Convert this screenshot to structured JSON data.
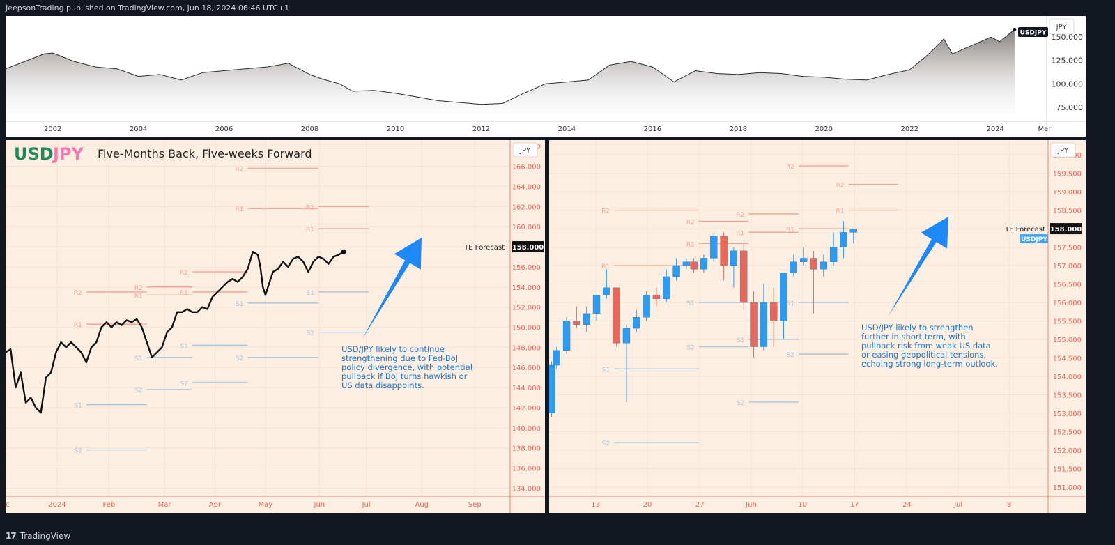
{
  "header": {
    "publish_text": "JeepsonTrading published on TradingView.com, Jun 18, 2024 06:46 UTC+1"
  },
  "footer": {
    "brand": "TradingView",
    "logo_text": "17"
  },
  "colors": {
    "panel_bg": "#fdeee2",
    "axis_text": "#e8685b",
    "resistance": "#f4a394",
    "support": "#a9c4de",
    "bull": "#2f9bf0",
    "bear": "#e8685b",
    "arrow": "#1e88f5",
    "usd": "#1f8a5a",
    "jpy": "#f47ab0",
    "annotation": "#1976d2"
  },
  "chart_data": [
    {
      "id": "overview",
      "type": "area",
      "currency_box": "JPY",
      "symbol_label": "USDJPY",
      "y_ticks": [
        "150.000",
        "125.000",
        "100.000",
        "75.000"
      ],
      "y_tick_values": [
        150,
        125,
        100,
        75
      ],
      "ylim": [
        60,
        168
      ],
      "xlim": [
        2000.9,
        2025.2
      ],
      "x_ticks": [
        "2002",
        "2004",
        "2006",
        "2008",
        "2010",
        "2012",
        "2014",
        "2016",
        "2018",
        "2020",
        "2022",
        "2024",
        "Mar"
      ],
      "x_tick_values": [
        2002,
        2004,
        2006,
        2008,
        2010,
        2012,
        2014,
        2016,
        2018,
        2020,
        2022,
        2024,
        2025.15
      ],
      "x": [
        2000.9,
        2001.3,
        2001.8,
        2002.0,
        2002.5,
        2003.0,
        2003.5,
        2004.0,
        2004.5,
        2005.0,
        2005.5,
        2006.0,
        2006.5,
        2007.0,
        2007.5,
        2008.0,
        2008.3,
        2008.7,
        2009.0,
        2009.5,
        2010.0,
        2010.5,
        2011.0,
        2011.5,
        2012.0,
        2012.5,
        2013.0,
        2013.5,
        2014.0,
        2014.5,
        2015.0,
        2015.5,
        2016.0,
        2016.5,
        2017.0,
        2017.5,
        2018.0,
        2018.5,
        2019.0,
        2019.5,
        2020.0,
        2020.5,
        2021.0,
        2021.5,
        2022.0,
        2022.4,
        2022.8,
        2023.0,
        2023.5,
        2023.9,
        2024.1,
        2024.45
      ],
      "y": [
        116,
        123,
        132,
        133,
        124,
        118,
        116,
        108,
        110,
        104,
        112,
        114,
        116,
        118,
        122,
        110,
        105,
        100,
        92,
        93,
        90,
        86,
        82,
        80,
        78,
        79,
        90,
        100,
        102,
        104,
        120,
        124,
        118,
        102,
        114,
        111,
        110,
        112,
        111,
        108,
        107,
        105,
        104,
        110,
        115,
        130,
        148,
        132,
        142,
        150,
        145,
        158
      ]
    },
    {
      "id": "left",
      "type": "line",
      "title_usd": "USD",
      "title_jpy": "JPY",
      "title": "Five-Months Back, Five-weeks Forward",
      "currency_box": "JPY",
      "forecast_label": "TE Forecast",
      "forecast_value": "158.000",
      "forecast_numeric": 158,
      "y_ticks": [
        "168.000",
        "166.000",
        "164.000",
        "162.000",
        "160.000",
        "158.000",
        "156.000",
        "154.000",
        "152.000",
        "150.000",
        "148.000",
        "146.000",
        "144.000",
        "142.000",
        "140.000",
        "138.000",
        "136.000",
        "134.000"
      ],
      "ylim": [
        133.2,
        168.6
      ],
      "xlim": [
        0,
        1
      ],
      "x_ticks": [
        "ec",
        "2024",
        "Feb",
        "Mar",
        "Apr",
        "May",
        "Jun",
        "Jul",
        "Aug",
        "Sep"
      ],
      "x_tick_pos": [
        0.0,
        0.102,
        0.205,
        0.315,
        0.415,
        0.515,
        0.622,
        0.715,
        0.825,
        0.93
      ],
      "line_x": [
        0.0,
        0.01,
        0.02,
        0.03,
        0.04,
        0.05,
        0.06,
        0.07,
        0.08,
        0.09,
        0.1,
        0.11,
        0.12,
        0.13,
        0.14,
        0.15,
        0.16,
        0.17,
        0.18,
        0.19,
        0.2,
        0.21,
        0.22,
        0.23,
        0.24,
        0.25,
        0.26,
        0.27,
        0.28,
        0.29,
        0.3,
        0.31,
        0.32,
        0.33,
        0.34,
        0.35,
        0.36,
        0.37,
        0.38,
        0.39,
        0.4,
        0.41,
        0.42,
        0.43,
        0.44,
        0.45,
        0.46,
        0.47,
        0.48,
        0.49,
        0.5,
        0.505,
        0.51,
        0.515,
        0.52,
        0.53,
        0.54,
        0.55,
        0.56,
        0.57,
        0.58,
        0.59,
        0.6,
        0.61,
        0.62,
        0.63,
        0.64,
        0.65,
        0.66,
        0.67
      ],
      "line_y": [
        147.5,
        147.8,
        144.0,
        145.5,
        142.5,
        143.0,
        142.0,
        141.5,
        145.0,
        145.5,
        147.5,
        148.5,
        148.0,
        148.5,
        148.0,
        147.5,
        146.5,
        148.0,
        148.5,
        150.0,
        150.5,
        150.0,
        150.5,
        150.2,
        150.7,
        150.5,
        150.8,
        150.0,
        148.5,
        147.0,
        147.5,
        148.0,
        149.5,
        150.0,
        151.5,
        151.5,
        151.8,
        151.5,
        151.5,
        152.0,
        151.8,
        153.0,
        153.5,
        154.0,
        154.5,
        154.8,
        154.5,
        155.0,
        155.8,
        157.5,
        157.2,
        156.0,
        154.0,
        153.2,
        154.0,
        155.5,
        155.8,
        156.5,
        156.0,
        156.8,
        157.0,
        156.5,
        155.5,
        156.5,
        157.0,
        156.8,
        156.3,
        157.0,
        157.2,
        157.5
      ],
      "levels": [
        {
          "label": "R2",
          "kind": "r",
          "value": 165.8,
          "x0": 0.48,
          "x1": 0.62
        },
        {
          "label": "R1",
          "kind": "r",
          "value": 161.8,
          "x0": 0.48,
          "x1": 0.62
        },
        {
          "label": "R2",
          "kind": "r",
          "value": 162.0,
          "x0": 0.62,
          "x1": 0.72
        },
        {
          "label": "R1",
          "kind": "r",
          "value": 159.8,
          "x0": 0.62,
          "x1": 0.72
        },
        {
          "label": "R2",
          "kind": "r",
          "value": 155.5,
          "x0": 0.37,
          "x1": 0.48
        },
        {
          "label": "R1",
          "kind": "r",
          "value": 153.5,
          "x0": 0.37,
          "x1": 0.48
        },
        {
          "label": "R2",
          "kind": "r",
          "value": 154.0,
          "x0": 0.28,
          "x1": 0.37
        },
        {
          "label": "R1",
          "kind": "r",
          "value": 153.2,
          "x0": 0.28,
          "x1": 0.37
        },
        {
          "label": "R2",
          "kind": "r",
          "value": 153.5,
          "x0": 0.16,
          "x1": 0.28
        },
        {
          "label": "R1",
          "kind": "r",
          "value": 150.3,
          "x0": 0.16,
          "x1": 0.28
        },
        {
          "label": "S1",
          "kind": "s",
          "value": 153.5,
          "x0": 0.62,
          "x1": 0.72
        },
        {
          "label": "S2",
          "kind": "s",
          "value": 149.5,
          "x0": 0.62,
          "x1": 0.72
        },
        {
          "label": "S1",
          "kind": "s",
          "value": 152.4,
          "x0": 0.48,
          "x1": 0.62
        },
        {
          "label": "S2",
          "kind": "s",
          "value": 147.0,
          "x0": 0.48,
          "x1": 0.62
        },
        {
          "label": "S1",
          "kind": "s",
          "value": 148.2,
          "x0": 0.37,
          "x1": 0.48
        },
        {
          "label": "S2",
          "kind": "s",
          "value": 144.5,
          "x0": 0.37,
          "x1": 0.48
        },
        {
          "label": "S1",
          "kind": "s",
          "value": 147.0,
          "x0": 0.28,
          "x1": 0.37
        },
        {
          "label": "S2",
          "kind": "s",
          "value": 143.8,
          "x0": 0.28,
          "x1": 0.37
        },
        {
          "label": "S1",
          "kind": "s",
          "value": 142.3,
          "x0": 0.16,
          "x1": 0.28
        },
        {
          "label": "S2",
          "kind": "s",
          "value": 137.8,
          "x0": 0.16,
          "x1": 0.28
        }
      ],
      "annotation": [
        "USD/JPY likely to continue",
        "strengthening due to Fed-BoJ",
        "policy divergence, with potential",
        "pullback if BoJ turns hawkish or",
        "US data disappoints."
      ]
    },
    {
      "id": "right",
      "type": "candlestick",
      "currency_box": "JPY",
      "forecast_label": "TE Forecast",
      "forecast_value": "158.000",
      "forecast_numeric": 158,
      "symbol_label": "USDJPY",
      "y_ticks": [
        "160.000",
        "159.500",
        "159.000",
        "158.500",
        "158.000",
        "157.500",
        "157.000",
        "156.500",
        "156.000",
        "155.500",
        "155.000",
        "154.500",
        "154.000",
        "153.500",
        "153.000",
        "152.500",
        "152.000",
        "151.500",
        "151.000"
      ],
      "ylim": [
        150.75,
        160.4
      ],
      "xlim": [
        0,
        1
      ],
      "x_ticks": [
        "13",
        "20",
        "27",
        "Jun",
        "10",
        "17",
        "24",
        "Jul",
        "8"
      ],
      "x_tick_pos": [
        0.093,
        0.197,
        0.302,
        0.405,
        0.508,
        0.612,
        0.717,
        0.82,
        0.922
      ],
      "candles": [
        {
          "x": 0.005,
          "o": 153.0,
          "h": 154.4,
          "l": 152.9,
          "c": 154.3
        },
        {
          "x": 0.015,
          "o": 154.3,
          "h": 154.8,
          "l": 154.2,
          "c": 154.7
        },
        {
          "x": 0.035,
          "o": 154.7,
          "h": 155.6,
          "l": 154.6,
          "c": 155.5
        },
        {
          "x": 0.055,
          "o": 155.5,
          "h": 155.9,
          "l": 155.3,
          "c": 155.4
        },
        {
          "x": 0.075,
          "o": 155.4,
          "h": 155.9,
          "l": 155.2,
          "c": 155.7
        },
        {
          "x": 0.095,
          "o": 155.7,
          "h": 156.2,
          "l": 155.5,
          "c": 156.2
        },
        {
          "x": 0.115,
          "o": 156.2,
          "h": 156.9,
          "l": 156.1,
          "c": 156.4
        },
        {
          "x": 0.135,
          "o": 156.4,
          "h": 156.4,
          "l": 154.8,
          "c": 154.9
        },
        {
          "x": 0.155,
          "o": 154.9,
          "h": 155.4,
          "l": 153.3,
          "c": 155.3
        },
        {
          "x": 0.175,
          "o": 155.3,
          "h": 155.8,
          "l": 155.2,
          "c": 155.6
        },
        {
          "x": 0.195,
          "o": 155.6,
          "h": 156.3,
          "l": 155.5,
          "c": 156.2
        },
        {
          "x": 0.215,
          "o": 156.2,
          "h": 156.4,
          "l": 155.9,
          "c": 156.1
        },
        {
          "x": 0.235,
          "o": 156.1,
          "h": 156.9,
          "l": 156.0,
          "c": 156.7
        },
        {
          "x": 0.255,
          "o": 156.7,
          "h": 157.2,
          "l": 156.6,
          "c": 157.0
        },
        {
          "x": 0.275,
          "o": 157.0,
          "h": 157.2,
          "l": 156.9,
          "c": 157.1
        },
        {
          "x": 0.29,
          "o": 157.1,
          "h": 157.2,
          "l": 156.8,
          "c": 156.9
        },
        {
          "x": 0.31,
          "o": 156.9,
          "h": 157.3,
          "l": 156.8,
          "c": 157.2
        },
        {
          "x": 0.33,
          "o": 157.2,
          "h": 157.9,
          "l": 157.1,
          "c": 157.8
        },
        {
          "x": 0.35,
          "o": 157.8,
          "h": 157.9,
          "l": 156.6,
          "c": 157.0
        },
        {
          "x": 0.37,
          "o": 157.0,
          "h": 157.5,
          "l": 156.4,
          "c": 157.4
        },
        {
          "x": 0.39,
          "o": 157.4,
          "h": 157.6,
          "l": 155.8,
          "c": 156.0
        },
        {
          "x": 0.41,
          "o": 156.0,
          "h": 156.3,
          "l": 154.5,
          "c": 154.8
        },
        {
          "x": 0.43,
          "o": 154.8,
          "h": 156.5,
          "l": 154.7,
          "c": 156.0
        },
        {
          "x": 0.45,
          "o": 156.0,
          "h": 156.4,
          "l": 154.8,
          "c": 155.5
        },
        {
          "x": 0.47,
          "o": 155.5,
          "h": 156.8,
          "l": 155.0,
          "c": 156.8
        },
        {
          "x": 0.49,
          "o": 156.8,
          "h": 157.3,
          "l": 156.7,
          "c": 157.1
        },
        {
          "x": 0.51,
          "o": 157.1,
          "h": 157.5,
          "l": 157.0,
          "c": 157.2
        },
        {
          "x": 0.53,
          "o": 157.2,
          "h": 157.4,
          "l": 155.7,
          "c": 156.9
        },
        {
          "x": 0.55,
          "o": 156.9,
          "h": 157.3,
          "l": 156.7,
          "c": 157.1
        },
        {
          "x": 0.57,
          "o": 157.1,
          "h": 157.9,
          "l": 157.0,
          "c": 157.5
        },
        {
          "x": 0.59,
          "o": 157.5,
          "h": 158.2,
          "l": 157.2,
          "c": 157.9
        },
        {
          "x": 0.61,
          "o": 157.9,
          "h": 158.0,
          "l": 157.6,
          "c": 158.0
        }
      ],
      "levels": [
        {
          "label": "R2",
          "kind": "r",
          "value": 158.5,
          "x0": 0.13,
          "x1": 0.3
        },
        {
          "label": "R1",
          "kind": "r",
          "value": 157.0,
          "x0": 0.13,
          "x1": 0.3
        },
        {
          "label": "S1",
          "kind": "s",
          "value": 154.2,
          "x0": 0.13,
          "x1": 0.3
        },
        {
          "label": "S2",
          "kind": "s",
          "value": 152.2,
          "x0": 0.13,
          "x1": 0.3
        },
        {
          "label": "R2",
          "kind": "r",
          "value": 158.2,
          "x0": 0.3,
          "x1": 0.4
        },
        {
          "label": "R1",
          "kind": "r",
          "value": 157.6,
          "x0": 0.3,
          "x1": 0.4
        },
        {
          "label": "S1",
          "kind": "s",
          "value": 156.0,
          "x0": 0.3,
          "x1": 0.4
        },
        {
          "label": "S2",
          "kind": "s",
          "value": 154.8,
          "x0": 0.3,
          "x1": 0.4
        },
        {
          "label": "R2",
          "kind": "r",
          "value": 158.4,
          "x0": 0.4,
          "x1": 0.5
        },
        {
          "label": "R1",
          "kind": "r",
          "value": 157.9,
          "x0": 0.4,
          "x1": 0.5
        },
        {
          "label": "S1",
          "kind": "s",
          "value": 155.0,
          "x0": 0.4,
          "x1": 0.5
        },
        {
          "label": "S2",
          "kind": "s",
          "value": 153.3,
          "x0": 0.4,
          "x1": 0.5
        },
        {
          "label": "R2",
          "kind": "r",
          "value": 159.7,
          "x0": 0.5,
          "x1": 0.6
        },
        {
          "label": "R1",
          "kind": "r",
          "value": 158.0,
          "x0": 0.5,
          "x1": 0.6
        },
        {
          "label": "S1",
          "kind": "s",
          "value": 156.0,
          "x0": 0.5,
          "x1": 0.6
        },
        {
          "label": "S2",
          "kind": "s",
          "value": 154.6,
          "x0": 0.5,
          "x1": 0.6
        },
        {
          "label": "R2",
          "kind": "r",
          "value": 159.2,
          "x0": 0.6,
          "x1": 0.7
        },
        {
          "label": "R1",
          "kind": "r",
          "value": 158.5,
          "x0": 0.6,
          "x1": 0.7
        }
      ],
      "annotation": [
        "USD/JPY likely to strengthen",
        "further in short term, with",
        "pullback risk from weak US data",
        "or easing geopolitical tensions,",
        "echoing strong long-term outlook."
      ]
    }
  ]
}
